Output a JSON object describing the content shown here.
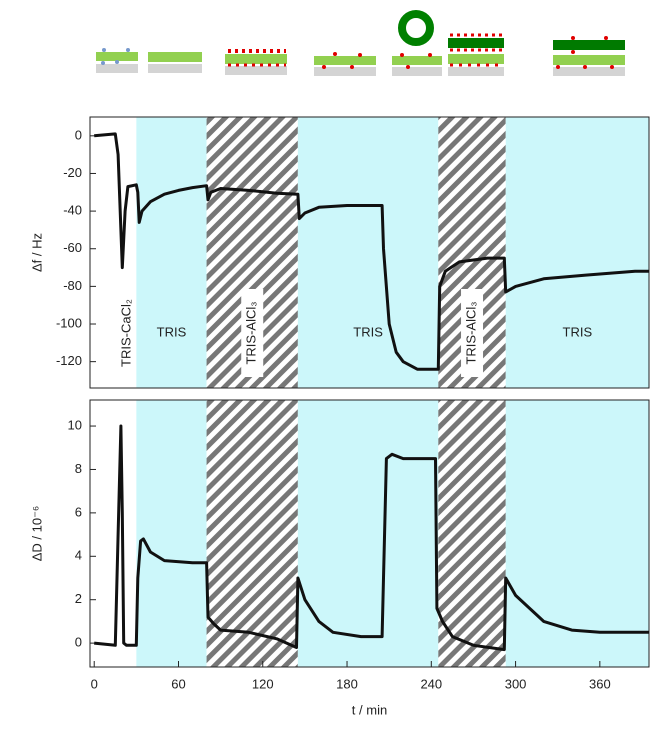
{
  "chart_data": [
    {
      "type": "line",
      "ylabel": "Δf / Hz",
      "xlim": [
        -3,
        395
      ],
      "ylim": [
        -134,
        10
      ],
      "yticks": [
        0,
        -20,
        -40,
        -60,
        -80,
        -100,
        -120
      ],
      "regions": [
        {
          "start": -3,
          "end": 30,
          "style": "none",
          "label": "TRIS-CaCl₂",
          "vertical": true
        },
        {
          "start": 30,
          "end": 80,
          "style": "cyan",
          "label": "TRIS",
          "vertical": false
        },
        {
          "start": 80,
          "end": 145,
          "style": "hatch",
          "label": "TRIS-AlCl₃",
          "vertical": true
        },
        {
          "start": 145,
          "end": 245,
          "style": "cyan",
          "label": "TRIS",
          "vertical": false
        },
        {
          "start": 245,
          "end": 293,
          "style": "hatch",
          "label": "TRIS-AlCl₃",
          "vertical": true
        },
        {
          "start": 293,
          "end": 395,
          "style": "cyan",
          "label": "TRIS",
          "vertical": false
        }
      ],
      "x": [
        0,
        15,
        17,
        20,
        22,
        24,
        30,
        31,
        32,
        34,
        40,
        50,
        60,
        70,
        80,
        81,
        83,
        90,
        110,
        130,
        145,
        146,
        150,
        160,
        180,
        205,
        206,
        210,
        215,
        220,
        230,
        245,
        246,
        250,
        260,
        280,
        292,
        293,
        300,
        320,
        350,
        385,
        395
      ],
      "series": [
        {
          "color": "#111111",
          "values": [
            0,
            1,
            -10,
            -70,
            -40,
            -27,
            -26,
            -30,
            -46,
            -40,
            -35,
            -31,
            -29,
            -27.5,
            -26.5,
            -34,
            -30,
            -28,
            -29,
            -30.5,
            -31,
            -44,
            -41,
            -38,
            -37,
            -37,
            -60,
            -100,
            -115,
            -120,
            -124,
            -124,
            -80,
            -72,
            -67,
            -65,
            -65,
            -83,
            -80,
            -76,
            -74,
            -72,
            -72
          ]
        }
      ]
    },
    {
      "type": "line",
      "ylabel": "ΔD / 10⁻⁶",
      "xlabel": "t / min",
      "xlim": [
        -3,
        395
      ],
      "ylim": [
        -1.1,
        11.2
      ],
      "xticks": [
        0,
        60,
        120,
        180,
        240,
        300,
        360
      ],
      "yticks": [
        0,
        2,
        4,
        6,
        8,
        10
      ],
      "regions": [
        {
          "start": 30,
          "end": 80,
          "style": "cyan"
        },
        {
          "start": 80,
          "end": 145,
          "style": "hatch"
        },
        {
          "start": 145,
          "end": 245,
          "style": "cyan"
        },
        {
          "start": 245,
          "end": 293,
          "style": "hatch"
        },
        {
          "start": 293,
          "end": 395,
          "style": "cyan"
        }
      ],
      "x": [
        0,
        15,
        17,
        19,
        20,
        21,
        23,
        30,
        31,
        33,
        35,
        40,
        50,
        70,
        80,
        81,
        85,
        90,
        110,
        130,
        144,
        145,
        150,
        160,
        170,
        190,
        205,
        206,
        208,
        212,
        220,
        243,
        244,
        248,
        255,
        270,
        292,
        293,
        300,
        320,
        340,
        360,
        395
      ],
      "series": [
        {
          "color": "#111111",
          "values": [
            0,
            -0.1,
            5,
            10,
            6,
            0,
            -0.1,
            -0.1,
            3,
            4.7,
            4.8,
            4.2,
            3.8,
            3.7,
            3.7,
            1.2,
            0.9,
            0.6,
            0.5,
            0.2,
            -0.2,
            3.0,
            2.0,
            1.0,
            0.5,
            0.3,
            0.3,
            3,
            8.5,
            8.7,
            8.5,
            8.5,
            1.6,
            1.0,
            0.3,
            -0.1,
            -0.3,
            3.0,
            2.2,
            1.0,
            0.6,
            0.5,
            0.5
          ]
        }
      ]
    }
  ]
}
